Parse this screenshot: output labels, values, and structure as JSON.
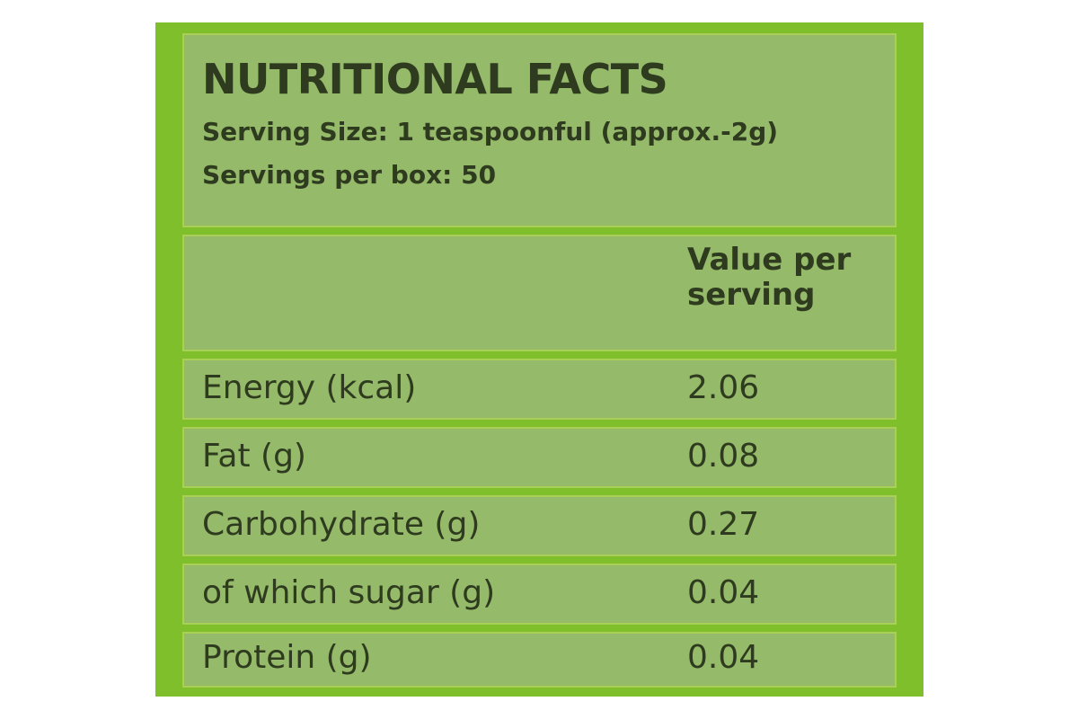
{
  "header": {
    "title": "NUTRITIONAL FACTS",
    "serving_size": "Serving Size: 1 teaspoonful (approx.-2g)",
    "servings_per_box": "Servings per box: 50"
  },
  "table": {
    "column_header_line1": "Value per",
    "column_header_line2": "serving",
    "rows": [
      {
        "nutrient": "Energy (kcal)",
        "value": "2.06"
      },
      {
        "nutrient": "Fat (g)",
        "value": "0.08"
      },
      {
        "nutrient": "Carbohydrate (g)",
        "value": "0.27"
      },
      {
        "nutrient": "of which sugar (g)",
        "value": "0.04"
      },
      {
        "nutrient": "Protein (g)",
        "value": "0.04"
      }
    ]
  },
  "colors": {
    "label_green": "#7fbf2c",
    "panel_green": "#95ba6a",
    "text": "#2e3b1f"
  }
}
